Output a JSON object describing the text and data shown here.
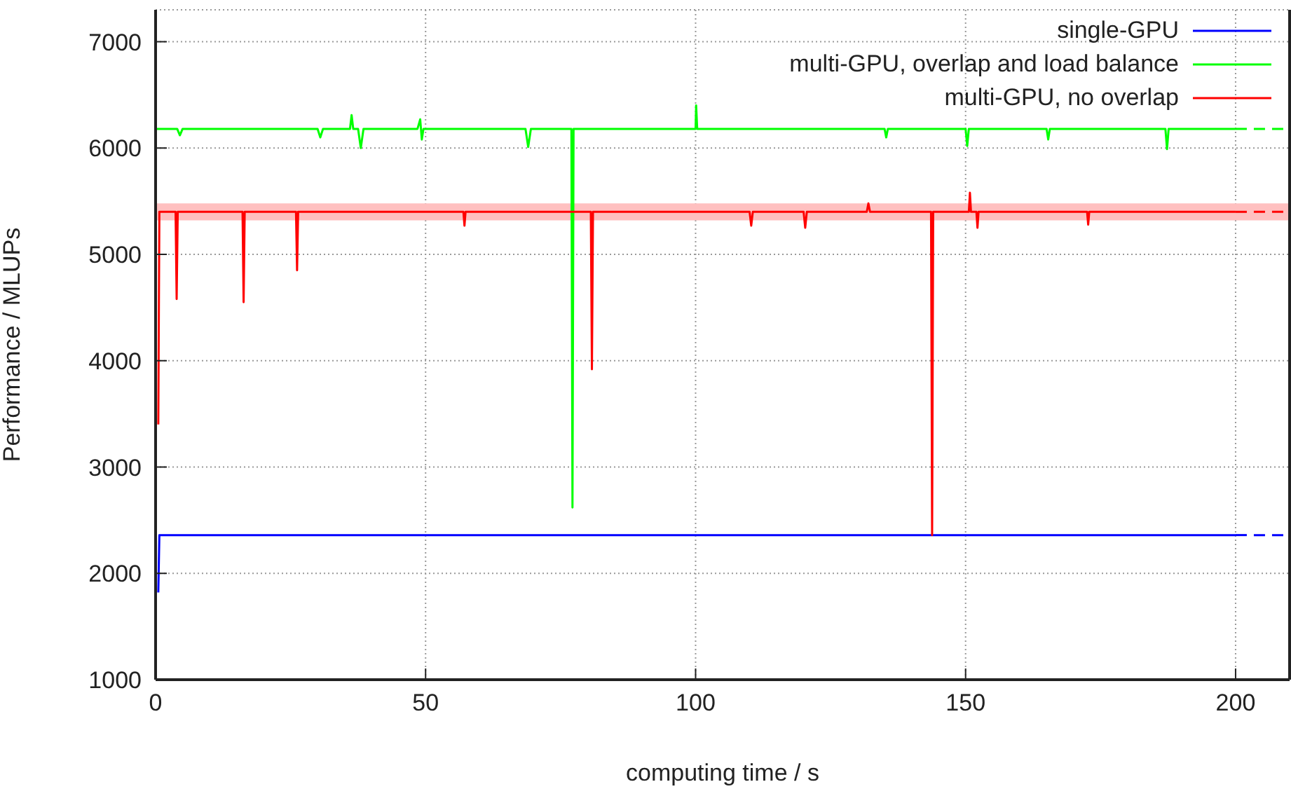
{
  "chart_data": {
    "type": "line",
    "xlabel": "computing time / s",
    "ylabel": "Performance / MLUPs",
    "xlim": [
      0,
      210
    ],
    "xticks": [
      0,
      50,
      100,
      150,
      200
    ],
    "ylim": [
      1000,
      7300
    ],
    "yticks": [
      1000,
      2000,
      3000,
      4000,
      5000,
      6000,
      7000
    ],
    "grid": true,
    "legend": "top right",
    "marker": "none",
    "bands": [
      {
        "axis": "y",
        "from": 5320,
        "to": 5480,
        "color": "#ffc0c0"
      }
    ],
    "series": [
      {
        "name": "single-GPU",
        "color": "#0000ff",
        "line_style": "solid",
        "x": [
          0.5,
          0.7,
          200
        ],
        "values": [
          1820,
          2360,
          2360
        ]
      },
      {
        "name": "multi-GPU, overlap and load balance",
        "color": "#00ff00",
        "line_style": "solid",
        "x": [
          0,
          4,
          4.5,
          5,
          30,
          30.5,
          31,
          36,
          36.3,
          36.6,
          37.5,
          38,
          38.5,
          48.5,
          49,
          49.3,
          49.6,
          68.5,
          69,
          69.5,
          77,
          77.2,
          77.4,
          100,
          100.1,
          100.3,
          135,
          135.3,
          135.6,
          150,
          150.3,
          150.6,
          165,
          165.3,
          165.6,
          187,
          187.3,
          187.6,
          200
        ],
        "values": [
          6180,
          6180,
          6120,
          6180,
          6180,
          6100,
          6180,
          6180,
          6310,
          6180,
          6180,
          6000,
          6180,
          6180,
          6270,
          6080,
          6180,
          6180,
          6010,
          6180,
          6180,
          2620,
          6180,
          6180,
          6400,
          6180,
          6180,
          6100,
          6180,
          6180,
          6020,
          6180,
          6180,
          6080,
          6180,
          6180,
          5990,
          6180,
          6180
        ]
      },
      {
        "name": "multi-GPU, no overlap",
        "color": "#ff0000",
        "line_style": "solid",
        "x": [
          0.5,
          0.7,
          3.7,
          3.9,
          4.1,
          16.1,
          16.3,
          16.5,
          26,
          26.2,
          26.4,
          57,
          57.2,
          57.4,
          80.6,
          80.8,
          81,
          110,
          110.3,
          110.6,
          120,
          120.3,
          120.6,
          131.7,
          132,
          132.3,
          143.6,
          143.8,
          144,
          150.6,
          150.8,
          151,
          152,
          152.2,
          152.4,
          172.5,
          172.7,
          172.9,
          200
        ],
        "values": [
          3400,
          5400,
          5400,
          4580,
          5400,
          5400,
          4550,
          5400,
          5400,
          4850,
          5400,
          5400,
          5270,
          5400,
          5400,
          3920,
          5400,
          5400,
          5270,
          5400,
          5400,
          5250,
          5400,
          5400,
          5480,
          5400,
          5400,
          2360,
          5400,
          5400,
          5580,
          5400,
          5400,
          5250,
          5400,
          5400,
          5280,
          5400,
          5400
        ]
      },
      {
        "color": "#0000ff",
        "line_style": "dashed",
        "x": [
          200,
          210
        ],
        "values": [
          2360,
          2360
        ]
      },
      {
        "color": "#00ff00",
        "line_style": "dashed",
        "x": [
          200,
          210
        ],
        "values": [
          6180,
          6180
        ]
      },
      {
        "color": "#ff0000",
        "line_style": "dashed",
        "x": [
          200,
          210
        ],
        "values": [
          5400,
          5400
        ]
      }
    ]
  }
}
